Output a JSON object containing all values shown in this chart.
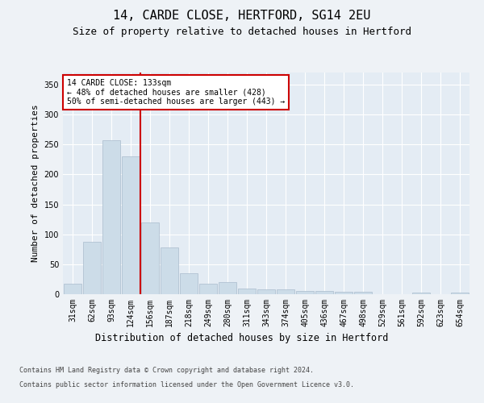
{
  "title": "14, CARDE CLOSE, HERTFORD, SG14 2EU",
  "subtitle": "Size of property relative to detached houses in Hertford",
  "xlabel": "Distribution of detached houses by size in Hertford",
  "ylabel": "Number of detached properties",
  "bar_color": "#ccdce8",
  "bar_edgecolor": "#aabccc",
  "vline_color": "#cc0000",
  "annotation_text": "14 CARDE CLOSE: 133sqm\n← 48% of detached houses are smaller (428)\n50% of semi-detached houses are larger (443) →",
  "annotation_box_edgecolor": "#cc0000",
  "categories": [
    "31sqm",
    "62sqm",
    "93sqm",
    "124sqm",
    "156sqm",
    "187sqm",
    "218sqm",
    "249sqm",
    "280sqm",
    "311sqm",
    "343sqm",
    "374sqm",
    "405sqm",
    "436sqm",
    "467sqm",
    "498sqm",
    "529sqm",
    "561sqm",
    "592sqm",
    "623sqm",
    "654sqm"
  ],
  "values": [
    18,
    87,
    257,
    230,
    120,
    78,
    35,
    18,
    20,
    10,
    8,
    8,
    6,
    6,
    4,
    4,
    0,
    0,
    3,
    0,
    3
  ],
  "ylim": [
    0,
    370
  ],
  "yticks": [
    0,
    50,
    100,
    150,
    200,
    250,
    300,
    350
  ],
  "background_color": "#eef2f6",
  "plot_background": "#e4ecf4",
  "grid_color": "#ffffff",
  "footer_line1": "Contains HM Land Registry data © Crown copyright and database right 2024.",
  "footer_line2": "Contains public sector information licensed under the Open Government Licence v3.0.",
  "title_fontsize": 11,
  "subtitle_fontsize": 9,
  "xlabel_fontsize": 8.5,
  "ylabel_fontsize": 8,
  "tick_fontsize": 7,
  "footer_fontsize": 6,
  "annotation_fontsize": 7
}
